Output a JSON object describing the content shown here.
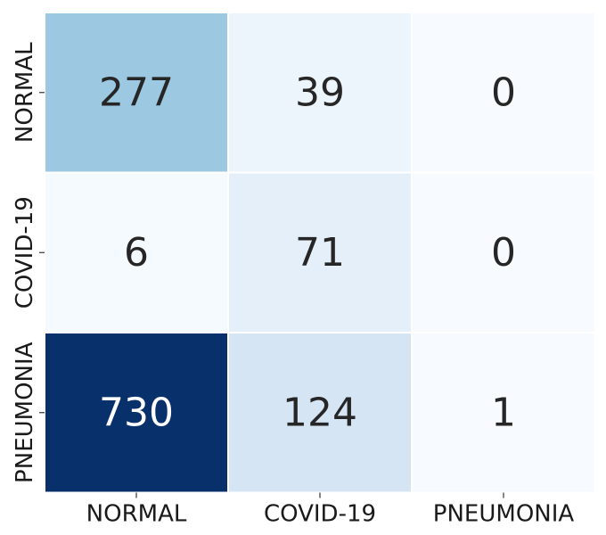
{
  "chart_data": {
    "type": "heatmap",
    "title": "",
    "xlabel": "",
    "ylabel": "",
    "x_categories": [
      "NORMAL",
      "COVID-19",
      "PNEUMONIA"
    ],
    "y_categories": [
      "NORMAL",
      "COVID-19",
      "PNEUMONIA"
    ],
    "values": [
      [
        277,
        39,
        0
      ],
      [
        6,
        71,
        0
      ],
      [
        730,
        124,
        1
      ]
    ],
    "colormap": "Blues",
    "colorbar": false,
    "gridlines": false
  }
}
